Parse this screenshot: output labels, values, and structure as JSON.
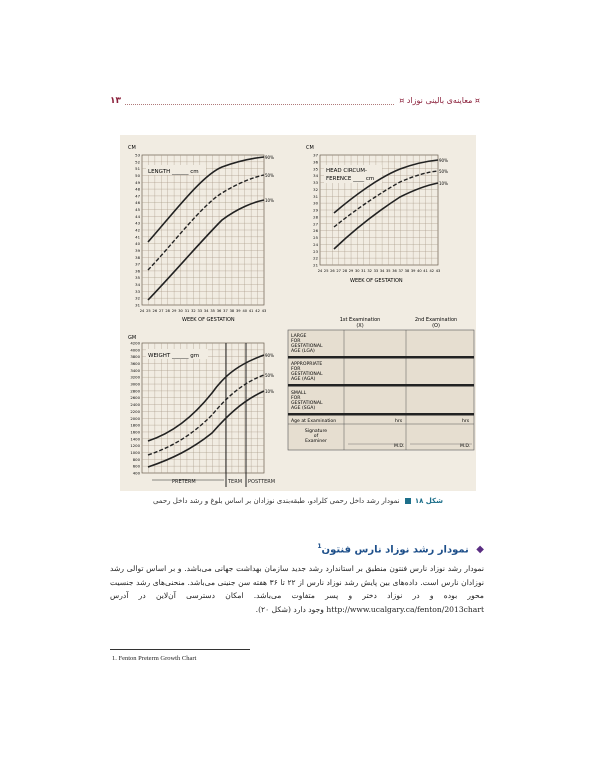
{
  "header": {
    "title": "معاینه‌ی بالینی نوزاد",
    "page_number": "۱۳"
  },
  "figure": {
    "length_chart": {
      "label": "LENGTH ______ cm",
      "y_title": "CM",
      "y_ticks": [
        "53",
        "52",
        "51",
        "50",
        "49",
        "48",
        "47",
        "46",
        "45",
        "44",
        "43",
        "42",
        "41",
        "40",
        "39",
        "38",
        "37",
        "36",
        "35",
        "34",
        "33",
        "32",
        "31"
      ],
      "x_ticks": [
        "24",
        "25",
        "26",
        "27",
        "28",
        "29",
        "30",
        "31",
        "32",
        "33",
        "34",
        "35",
        "36",
        "37",
        "38",
        "39",
        "40",
        "41",
        "42",
        "43"
      ],
      "xlabel": "WEEK OF GESTATION",
      "percentile_labels": [
        "90%",
        "50%",
        "10%"
      ]
    },
    "head_chart": {
      "label_line1": "HEAD CIRCUM-",
      "label_line2": "FERENCE ____ cm",
      "y_title": "CM",
      "y_ticks": [
        "37",
        "36",
        "35",
        "34",
        "33",
        "32",
        "31",
        "30",
        "29",
        "28",
        "27",
        "26",
        "25",
        "24",
        "23",
        "22",
        "21"
      ],
      "x_ticks": [
        "24",
        "25",
        "26",
        "27",
        "28",
        "29",
        "30",
        "31",
        "32",
        "33",
        "34",
        "35",
        "36",
        "37",
        "38",
        "39",
        "40",
        "41",
        "42",
        "43"
      ],
      "xlabel": "WEEK OF GESTATION",
      "percentile_labels": [
        "90%",
        "50%",
        "10%"
      ]
    },
    "weight_chart": {
      "label": "WEIGHT ______ gm",
      "y_title": "GM",
      "y_ticks": [
        "4200",
        "4000",
        "3800",
        "3600",
        "3400",
        "3200",
        "3000",
        "2800",
        "2600",
        "2400",
        "2200",
        "2000",
        "1800",
        "1600",
        "1400",
        "1200",
        "1000",
        "800",
        "600",
        "400"
      ],
      "percentile_labels": [
        "90%",
        "50%",
        "10%"
      ],
      "term_labels": [
        "PRETERM",
        "TERM",
        "POSTTERM"
      ]
    },
    "exam_table": {
      "col1": "1st Examination",
      "col1_sub": "(X)",
      "col2": "2nd Examination",
      "col2_sub": "(O)",
      "lga": [
        "LARGE",
        "FOR",
        "GESTATIONAL",
        "AGE     (LGA)"
      ],
      "aga": [
        "APPROPRIATE",
        "FOR",
        "GESTATIONAL",
        "AGE     (AGA)"
      ],
      "sga": [
        "SMALL",
        "FOR",
        "GESTATIONAL",
        "AGE     (SGA)"
      ],
      "age_label": "Age at Examination",
      "hrs": "hrs",
      "signature": [
        "Signature",
        "of",
        "Examiner"
      ],
      "md": "M.D."
    }
  },
  "caption": {
    "label": "شکل ۱۸",
    "text": "نمودار رشد داخل رحمی کلرادو، طبقه‌بندی نوزادان بر اساس بلوغ و رشد داخل رحمی"
  },
  "section": {
    "heading": "نمودار رشد نوزاد نارس فنتون",
    "footnote_ref": "1"
  },
  "body": {
    "paragraph": "نمودار رشد نوزاد نارس فنتون منطبق بر استاندارد رشد جدید سازمان بهداشت جهانی می‌باشد. و بر اساس توالی رشد نوزادان نارس است. داده‌های بین پایش رشد نوزاد نارس از ۲۲ تا ۳۶ هفته سن جنینی می‌باشد. منحنی‌های رشد جنسیت محور بوده و در نوزاد دختر و پسر متفاوت می‌باشد. امکان دسترسی آن‌لاین در آدرس http://www.ucalgary.ca/fenton/2013chart وجود دارد (شکل ۲۰)."
  },
  "footnote": {
    "text": "1. Fenton Preterm Growth Chart"
  },
  "colors": {
    "accent": "#8a1f3a",
    "caption_blue": "#1d6f8a",
    "figure_bg": "#f1ece2",
    "grid": "#a89a86"
  }
}
